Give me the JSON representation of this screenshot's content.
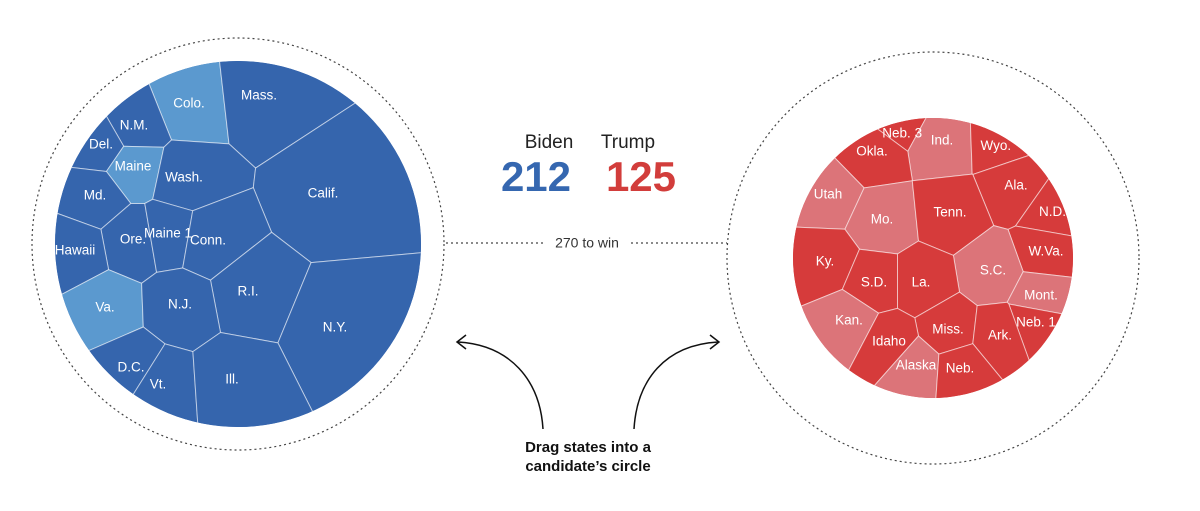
{
  "colors": {
    "biden_dark": "#3565ad",
    "biden_light": "#5b99cf",
    "trump_dark": "#d63b3b",
    "trump_light": "#dc7479",
    "biden_number": "#3567b0",
    "trump_number": "#d23d3b"
  },
  "scoreboard": {
    "biden_label": "Biden",
    "biden_votes": "212",
    "trump_label": "Trump",
    "trump_votes": "125",
    "win_label": "270 to win"
  },
  "instructions": {
    "line1": "Drag states into a",
    "line2": "candidate’s circle"
  },
  "biden_states": [
    {
      "name": "Colo.",
      "tone": "light"
    },
    {
      "name": "Mass.",
      "tone": "dark"
    },
    {
      "name": "N.M.",
      "tone": "dark"
    },
    {
      "name": "Del.",
      "tone": "dark"
    },
    {
      "name": "Maine",
      "tone": "light"
    },
    {
      "name": "Wash.",
      "tone": "dark"
    },
    {
      "name": "Calif.",
      "tone": "dark"
    },
    {
      "name": "Md.",
      "tone": "dark"
    },
    {
      "name": "Ore.",
      "tone": "dark"
    },
    {
      "name": "Maine 1",
      "tone": "dark"
    },
    {
      "name": "Conn.",
      "tone": "dark"
    },
    {
      "name": "Hawaii",
      "tone": "dark"
    },
    {
      "name": "R.I.",
      "tone": "dark"
    },
    {
      "name": "Va.",
      "tone": "light"
    },
    {
      "name": "N.J.",
      "tone": "dark"
    },
    {
      "name": "N.Y.",
      "tone": "dark"
    },
    {
      "name": "D.C.",
      "tone": "dark"
    },
    {
      "name": "Vt.",
      "tone": "dark"
    },
    {
      "name": "Ill.",
      "tone": "dark"
    }
  ],
  "trump_states": [
    {
      "name": "Neb. 3",
      "tone": "dark"
    },
    {
      "name": "Ind.",
      "tone": "light"
    },
    {
      "name": "Wyo.",
      "tone": "dark"
    },
    {
      "name": "Okla.",
      "tone": "dark"
    },
    {
      "name": "Utah",
      "tone": "light"
    },
    {
      "name": "Ala.",
      "tone": "dark"
    },
    {
      "name": "Mo.",
      "tone": "light"
    },
    {
      "name": "Tenn.",
      "tone": "dark"
    },
    {
      "name": "N.D.",
      "tone": "dark"
    },
    {
      "name": "Ky.",
      "tone": "dark"
    },
    {
      "name": "W.Va.",
      "tone": "dark"
    },
    {
      "name": "S.C.",
      "tone": "light"
    },
    {
      "name": "S.D.",
      "tone": "dark"
    },
    {
      "name": "La.",
      "tone": "dark"
    },
    {
      "name": "Mont.",
      "tone": "light"
    },
    {
      "name": "Kan.",
      "tone": "light"
    },
    {
      "name": "Neb. 1",
      "tone": "dark"
    },
    {
      "name": "Miss.",
      "tone": "dark"
    },
    {
      "name": "Ark.",
      "tone": "dark"
    },
    {
      "name": "Idaho",
      "tone": "dark"
    },
    {
      "name": "Alaska",
      "tone": "light"
    },
    {
      "name": "Neb.",
      "tone": "dark"
    }
  ]
}
